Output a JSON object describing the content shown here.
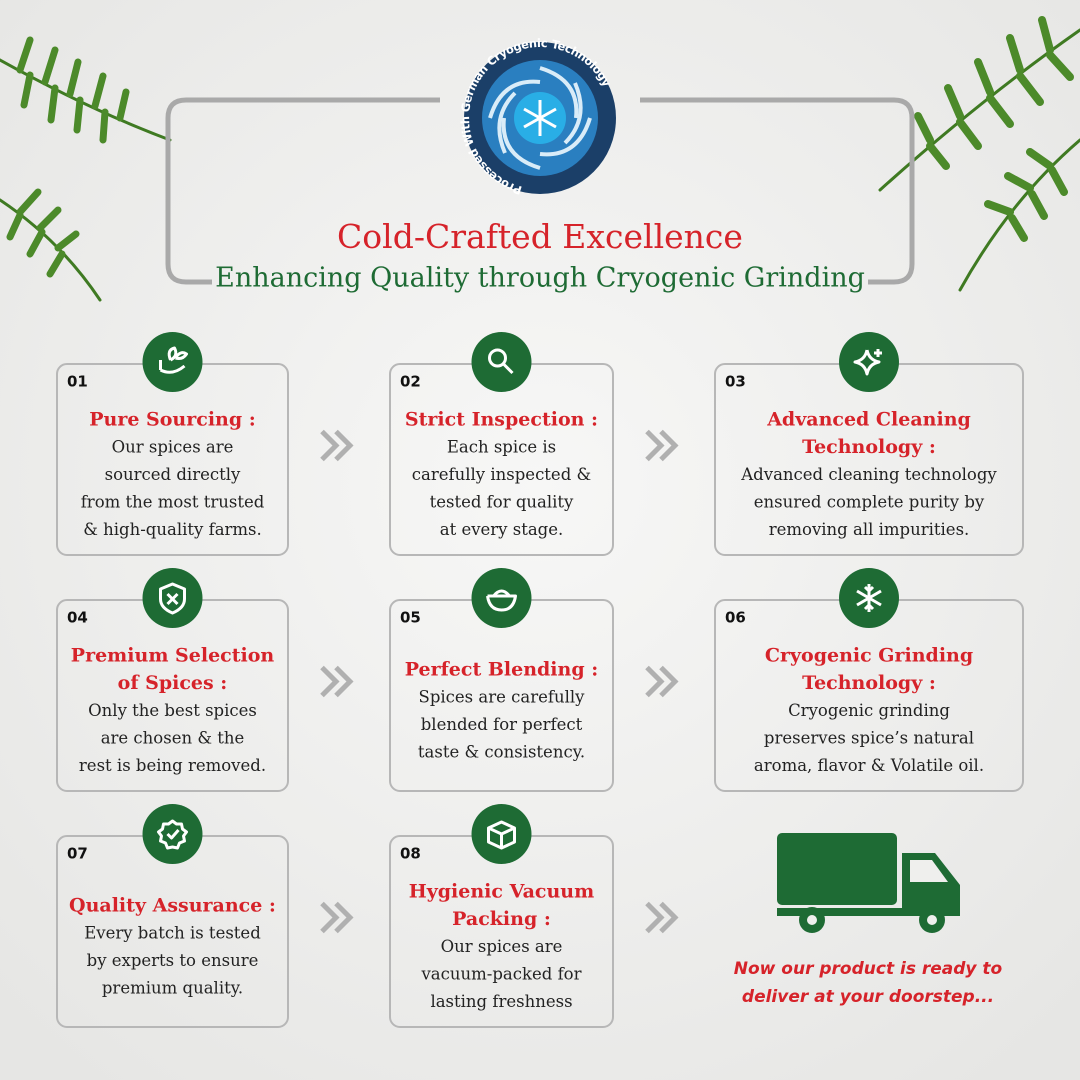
{
  "badge": {
    "text": "Processed With German Cryogenic Technology"
  },
  "header": {
    "title": "Cold-Crafted Excellence",
    "subtitle": "Enhancing Quality through Cryogenic Grinding"
  },
  "steps": [
    {
      "number": "01",
      "title": [
        "Pure Sourcing :"
      ],
      "body": [
        "Our spices are",
        "sourced directly",
        "from the most trusted",
        "& high-quality farms."
      ]
    },
    {
      "number": "02",
      "title": [
        "Strict Inspection :"
      ],
      "body": [
        "Each spice is",
        "carefully inspected &",
        "tested for quality",
        "at every stage."
      ]
    },
    {
      "number": "03",
      "title": [
        "Advanced Cleaning",
        "Technology :"
      ],
      "body": [
        "Advanced cleaning technology",
        "ensured complete purity by",
        "removing all impurities."
      ]
    },
    {
      "number": "04",
      "title": [
        "Premium Selection",
        "of Spices :"
      ],
      "body": [
        "Only the best spices",
        "are chosen & the",
        "rest is being removed."
      ]
    },
    {
      "number": "05",
      "title": [
        "Perfect Blending :"
      ],
      "body": [
        "Spices are carefully",
        "blended for perfect",
        "taste & consistency."
      ]
    },
    {
      "number": "06",
      "title": [
        "Cryogenic Grinding",
        "Technology :"
      ],
      "body": [
        "Cryogenic grinding",
        "preserves spice’s natural",
        "aroma, flavor & Volatile oil."
      ]
    },
    {
      "number": "07",
      "title": [
        "Quality Assurance :"
      ],
      "body": [
        "Every batch is tested",
        "by experts to ensure",
        "premium quality."
      ]
    },
    {
      "number": "08",
      "title": [
        "Hygienic Vacuum",
        "Packing :"
      ],
      "body": [
        "Our spices are",
        "vacuum-packed for",
        "lasting freshness"
      ]
    }
  ],
  "delivery": {
    "lines": [
      "Now our product is ready to",
      "deliver at your doorstep..."
    ]
  }
}
